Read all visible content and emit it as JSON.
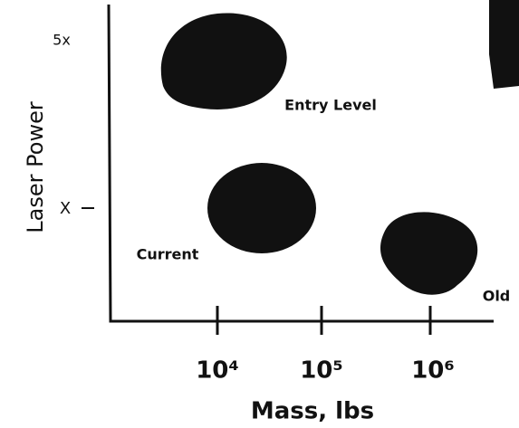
{
  "axes": {
    "x_label": "Mass, lbs",
    "y_label": "Laser Power",
    "x_ticks": [
      "10⁴",
      "10⁵",
      "10⁶"
    ],
    "y_ticks": [
      "5x",
      "X"
    ]
  },
  "regions": [
    {
      "label": "Entry Level"
    },
    {
      "label": "Current"
    },
    {
      "label": "Old"
    }
  ]
}
